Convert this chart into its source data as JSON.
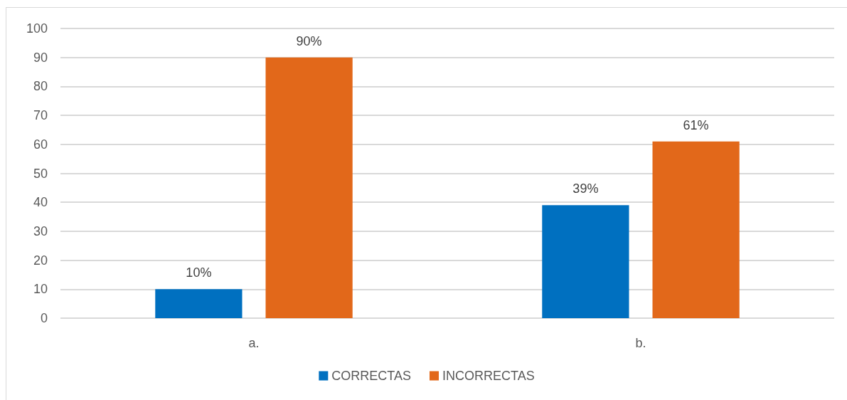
{
  "chart_data": {
    "type": "bar",
    "categories": [
      "a.",
      "b."
    ],
    "series": [
      {
        "name": "CORRECTAS",
        "color": "#0070c0",
        "values": [
          10,
          39
        ],
        "value_labels": [
          "10%",
          "39%"
        ]
      },
      {
        "name": "INCORRECTAS",
        "color": "#e2681a",
        "values": [
          90,
          61
        ],
        "value_labels": [
          "90%",
          "61%"
        ]
      }
    ],
    "ylim": [
      0,
      100
    ],
    "yticks": [
      0,
      10,
      20,
      30,
      40,
      50,
      60,
      70,
      80,
      90,
      100
    ],
    "grid": "y",
    "legend": "bottom"
  }
}
